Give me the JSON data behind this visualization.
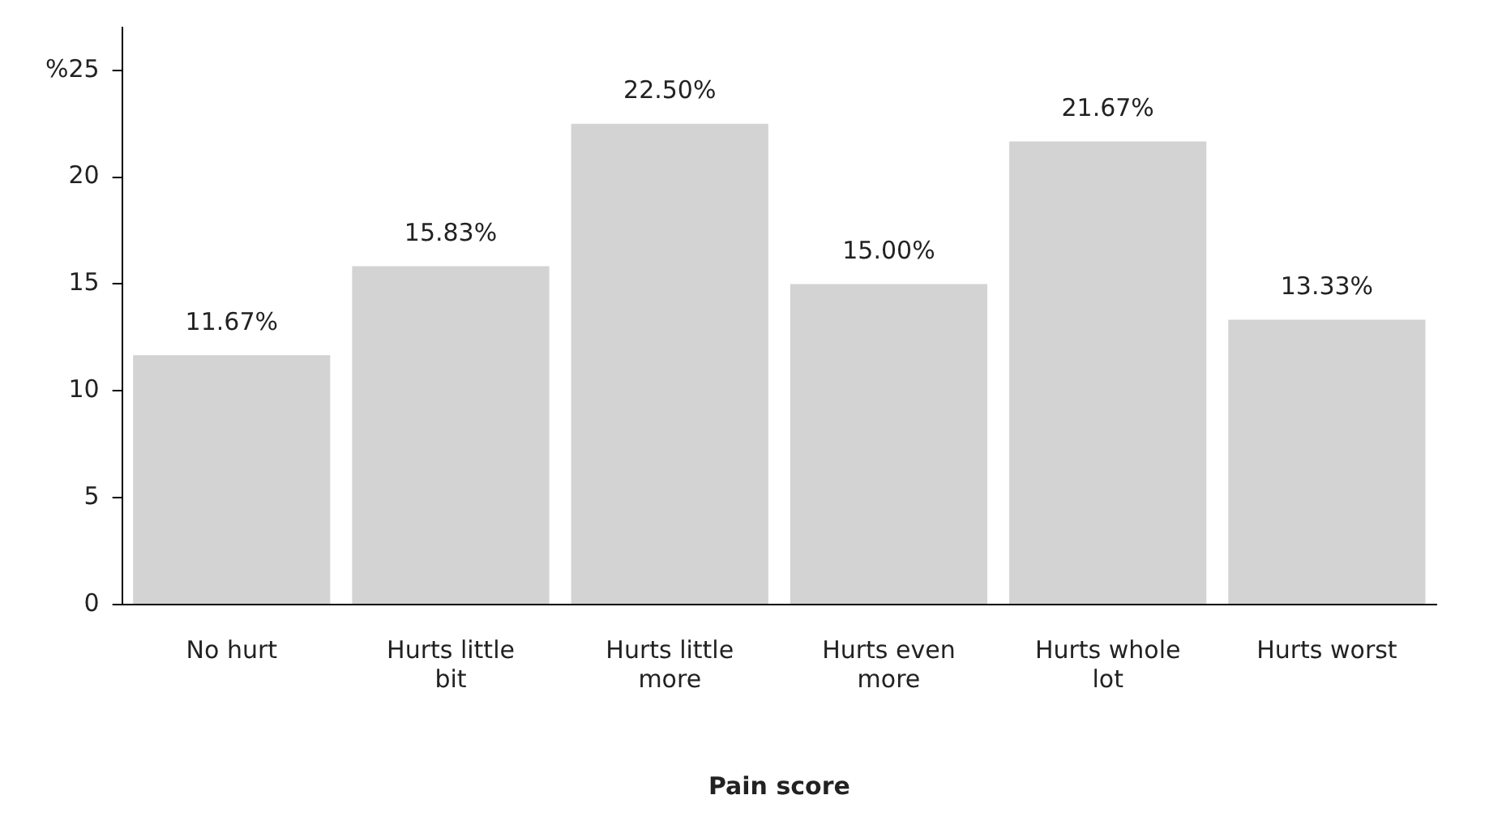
{
  "chart_data": {
    "type": "bar",
    "xlabel": "Pain score",
    "categories": [
      "No hurt",
      "Hurts little bit",
      "Hurts little more",
      "Hurts even more",
      "Hurts whole lot",
      "Hurts worst"
    ],
    "values": [
      11.67,
      15.83,
      22.5,
      15.0,
      21.67,
      13.33
    ],
    "value_labels": [
      "11.67%",
      "15.83%",
      "22.50%",
      "15.00%",
      "21.67%",
      "13.33%"
    ],
    "color": "#d3d3d3",
    "ylim": [
      0,
      27
    ],
    "yticks": [
      0,
      5,
      10,
      15,
      20,
      {
        "value": 25,
        "label": "%25"
      }
    ],
    "grid": false,
    "legend": false
  }
}
